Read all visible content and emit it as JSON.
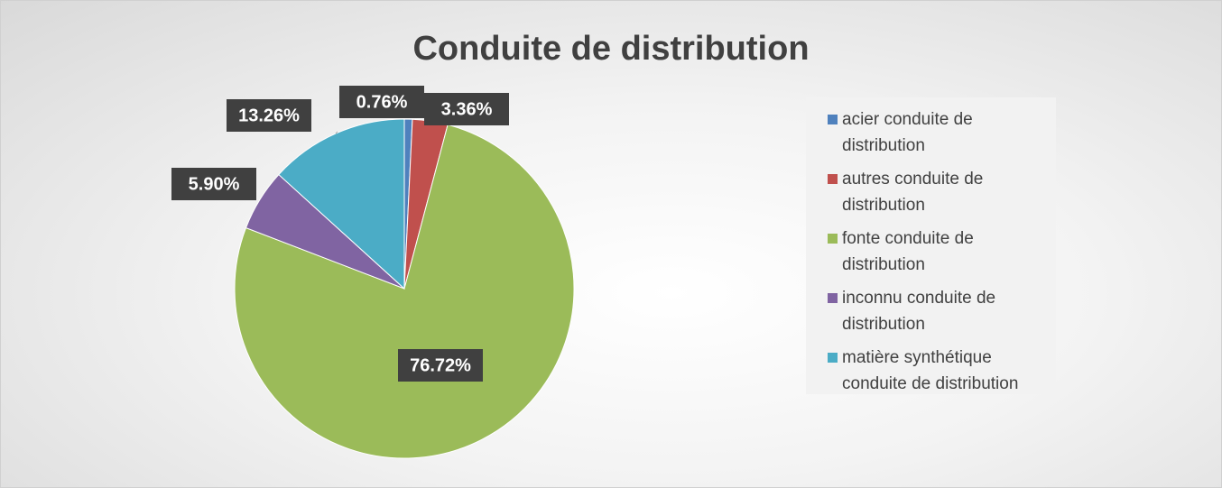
{
  "chart_data": {
    "type": "pie",
    "title": "Conduite de distribution",
    "categories": [
      "acier conduite de distribution",
      "autres conduite de distribution",
      "fonte conduite de distribution",
      "inconnu conduite de distribution",
      "matière synthétique conduite de distribution"
    ],
    "values": [
      0.76,
      3.36,
      76.72,
      5.9,
      13.26
    ],
    "value_labels": [
      "0.76%",
      "3.36%",
      "76.72%",
      "5.90%",
      "13.26%"
    ],
    "colors": [
      "#4f81bd",
      "#c0504d",
      "#9bbb59",
      "#8064a2",
      "#4bacc6"
    ],
    "legend": "right"
  }
}
